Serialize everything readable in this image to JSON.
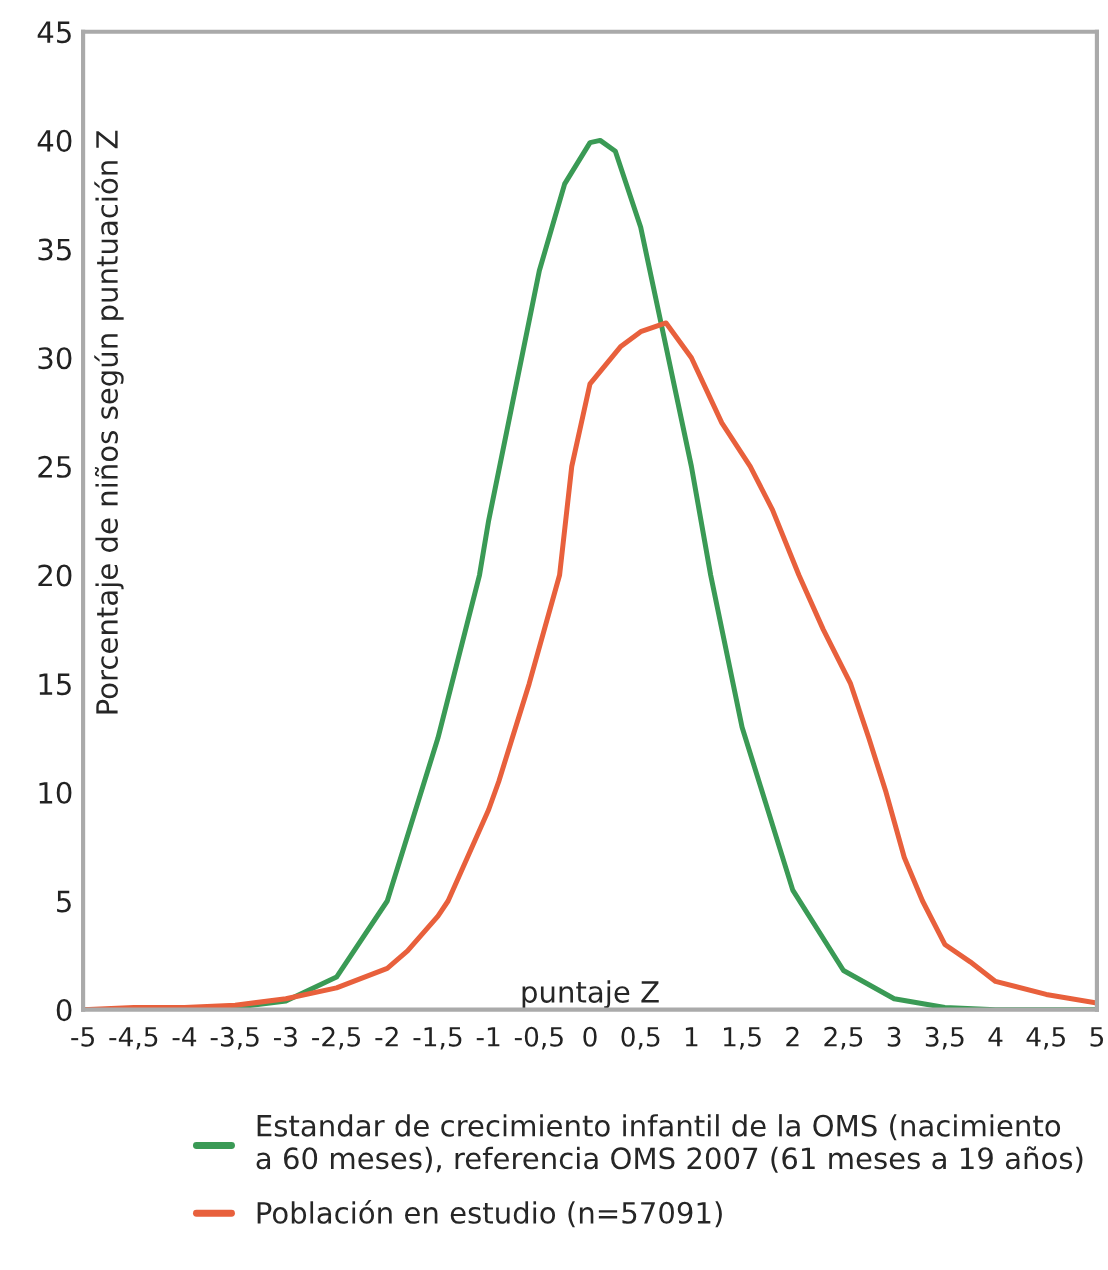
{
  "chart_data": {
    "type": "line",
    "xlabel": "puntaje Z",
    "ylabel": "Porcentaje de niños según puntuación Z",
    "xlim": [
      -5,
      5
    ],
    "ylim": [
      0,
      45
    ],
    "xticks": [
      -5,
      {
        "value": -4.5,
        "label": "-4,5"
      },
      -4,
      {
        "value": -3.5,
        "label": "-3,5"
      },
      -3,
      {
        "value": -2.5,
        "label": "-2,5"
      },
      -2,
      {
        "value": -1.5,
        "label": "-1,5"
      },
      -1,
      {
        "value": -0.5,
        "label": "-0,5"
      },
      0,
      {
        "value": 0.5,
        "label": "0,5"
      },
      1,
      {
        "value": 1.5,
        "label": "1,5"
      },
      2,
      {
        "value": 2.5,
        "label": "2,5"
      },
      3,
      {
        "value": 3.5,
        "label": "3,5"
      },
      4,
      {
        "value": 4.5,
        "label": "4,5"
      },
      5
    ],
    "yticks": [
      0,
      5,
      10,
      15,
      20,
      25,
      30,
      35,
      40,
      45
    ],
    "grid": false,
    "legend": "bottom",
    "marker": "none",
    "line_style": "solid",
    "series": [
      {
        "name": "Estandar de crecimiento infantil de la OMS (nacimiento\na 60 meses), referencia OMS 2007 (61 meses a 19 años)",
        "color": "#3a9a55",
        "x": [
          -5,
          -4,
          -3.5,
          -3,
          -2.5,
          -2,
          -1.5,
          -1.09,
          -1,
          -0.5,
          -0.25,
          0,
          0.1,
          0.25,
          0.5,
          0.75,
          1,
          1.19,
          1.5,
          2,
          2.5,
          3,
          3.5,
          4,
          5
        ],
        "values": [
          0,
          0,
          0.1,
          0.4,
          1.5,
          5,
          12.5,
          20,
          22.5,
          34,
          38,
          39.9,
          40,
          39.5,
          36,
          30.5,
          25,
          20,
          13,
          5.5,
          1.8,
          0.5,
          0.1,
          0,
          0
        ]
      },
      {
        "name": "Población en estudio (n=57091)",
        "color": "#e8603c",
        "x": [
          -5,
          -4.5,
          -4,
          -3.5,
          -3,
          -2.5,
          -2,
          -1.8,
          -1.5,
          -1.4,
          -1,
          -0.9,
          -0.6,
          -0.3,
          -0.18,
          0,
          0.3,
          0.5,
          0.75,
          1,
          1.3,
          1.58,
          1.8,
          2.06,
          2.3,
          2.57,
          2.75,
          2.92,
          3.1,
          3.28,
          3.5,
          3.75,
          4,
          4.5,
          5
        ],
        "values": [
          0,
          0.1,
          0.1,
          0.2,
          0.5,
          1.0,
          1.9,
          2.7,
          4.3,
          5,
          9.2,
          10.5,
          15,
          20,
          25,
          28.8,
          30.5,
          31.2,
          31.6,
          30,
          27,
          25,
          23,
          20,
          17.5,
          15,
          12.5,
          10,
          7,
          5,
          3,
          2.2,
          1.3,
          0.7,
          0.3
        ]
      }
    ]
  }
}
